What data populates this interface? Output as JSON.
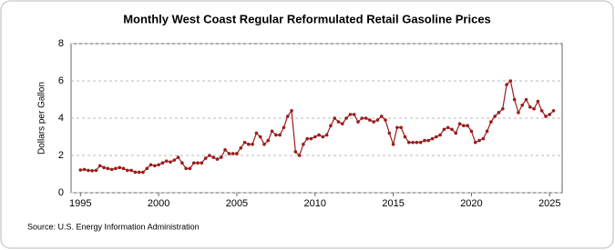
{
  "chart_data": {
    "type": "line",
    "title": "Monthly West Coast Regular Reformulated Retail Gasoline Prices",
    "y_label": "Dollars per Gallon",
    "source": "Source: U.S. Energy Information Administration",
    "color": "#9b1c1c",
    "grid": true,
    "xlim": [
      1994.4,
      2025.8
    ],
    "xticks": [
      1995,
      2000,
      2005,
      2010,
      2015,
      2020,
      2025
    ],
    "ylim": [
      0,
      8
    ],
    "yticks": [
      0,
      2,
      4,
      6,
      8
    ],
    "x": [
      1995,
      1995.25,
      1995.5,
      1995.75,
      1996,
      1996.25,
      1996.5,
      1996.75,
      1997,
      1997.25,
      1997.5,
      1997.75,
      1998,
      1998.25,
      1998.5,
      1998.75,
      1999,
      1999.25,
      1999.5,
      1999.75,
      2000,
      2000.25,
      2000.5,
      2000.75,
      2001,
      2001.25,
      2001.5,
      2001.75,
      2002,
      2002.25,
      2002.5,
      2002.75,
      2003,
      2003.25,
      2003.5,
      2003.75,
      2004,
      2004.25,
      2004.5,
      2004.75,
      2005,
      2005.25,
      2005.5,
      2005.75,
      2006,
      2006.25,
      2006.5,
      2006.75,
      2007,
      2007.25,
      2007.5,
      2007.75,
      2008,
      2008.25,
      2008.5,
      2008.75,
      2009,
      2009.25,
      2009.5,
      2009.75,
      2010,
      2010.25,
      2010.5,
      2010.75,
      2011,
      2011.25,
      2011.5,
      2011.75,
      2012,
      2012.25,
      2012.5,
      2012.75,
      2013,
      2013.25,
      2013.5,
      2013.75,
      2014,
      2014.25,
      2014.5,
      2014.75,
      2015,
      2015.25,
      2015.5,
      2015.75,
      2016,
      2016.25,
      2016.5,
      2016.75,
      2017,
      2017.25,
      2017.5,
      2017.75,
      2018,
      2018.25,
      2018.5,
      2018.75,
      2019,
      2019.25,
      2019.5,
      2019.75,
      2020,
      2020.25,
      2020.5,
      2020.75,
      2021,
      2021.25,
      2021.5,
      2021.75,
      2022,
      2022.25,
      2022.5,
      2022.75,
      2023,
      2023.25,
      2023.5,
      2023.75,
      2024,
      2024.25,
      2024.5,
      2024.75,
      2025,
      2025.25
    ],
    "values": [
      1.22,
      1.25,
      1.2,
      1.18,
      1.2,
      1.45,
      1.35,
      1.3,
      1.25,
      1.3,
      1.35,
      1.3,
      1.2,
      1.2,
      1.1,
      1.1,
      1.1,
      1.3,
      1.5,
      1.45,
      1.5,
      1.6,
      1.7,
      1.65,
      1.75,
      1.9,
      1.6,
      1.3,
      1.3,
      1.6,
      1.6,
      1.6,
      1.85,
      2.0,
      1.9,
      1.8,
      1.9,
      2.3,
      2.1,
      2.1,
      2.1,
      2.4,
      2.7,
      2.6,
      2.6,
      3.2,
      3.0,
      2.6,
      2.8,
      3.3,
      3.1,
      3.1,
      3.5,
      4.1,
      4.4,
      2.2,
      2.0,
      2.6,
      2.9,
      2.9,
      3.0,
      3.1,
      3.0,
      3.1,
      3.6,
      4.0,
      3.8,
      3.7,
      4.0,
      4.2,
      4.2,
      3.8,
      4.0,
      4.0,
      3.9,
      3.8,
      3.9,
      4.1,
      3.9,
      3.2,
      2.6,
      3.5,
      3.5,
      3.0,
      2.7,
      2.7,
      2.7,
      2.7,
      2.8,
      2.8,
      2.9,
      3.0,
      3.1,
      3.4,
      3.5,
      3.4,
      3.2,
      3.7,
      3.6,
      3.6,
      3.3,
      2.7,
      2.8,
      2.9,
      3.3,
      3.8,
      4.1,
      4.3,
      4.5,
      5.8,
      6.0,
      5.0,
      4.3,
      4.7,
      5.0,
      4.6,
      4.5,
      4.9,
      4.4,
      4.1,
      4.2,
      4.4
    ]
  }
}
